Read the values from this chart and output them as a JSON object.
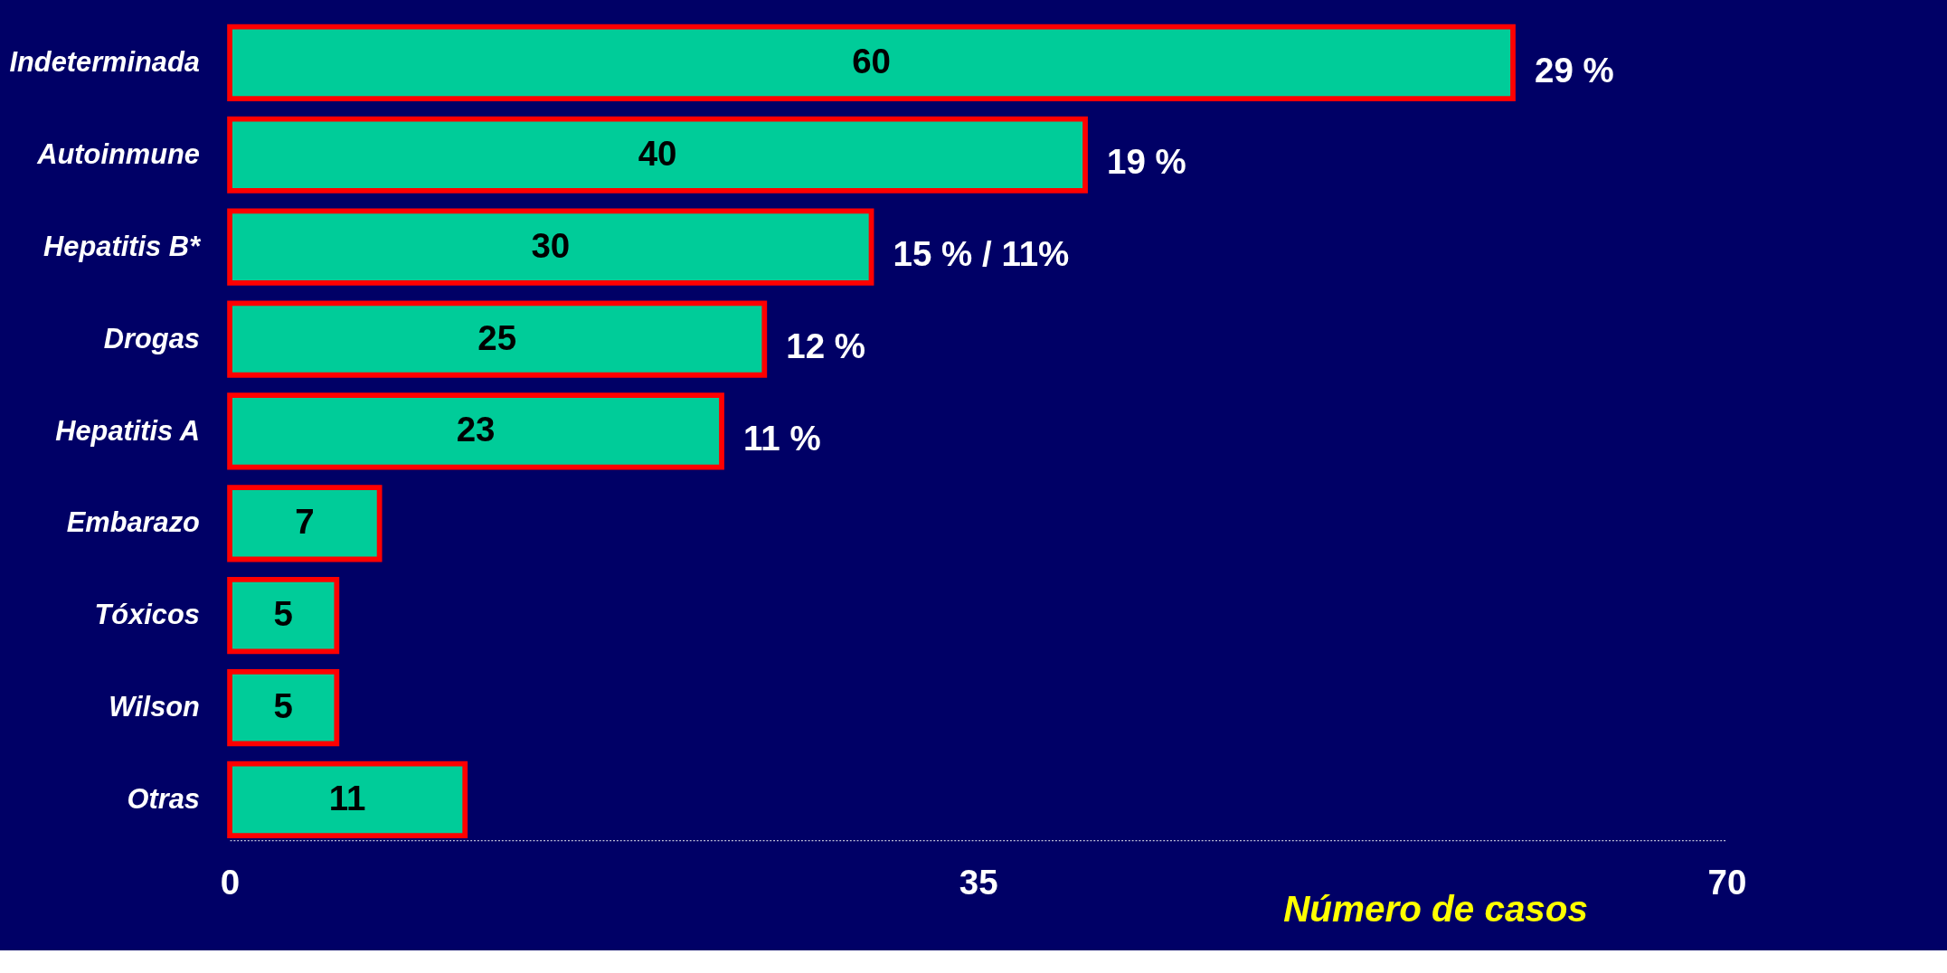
{
  "chart_data": {
    "type": "bar",
    "orientation": "horizontal",
    "categories": [
      "Indeterminada",
      "Autoinmune",
      "Hepatitis B*",
      "Drogas",
      "Hepatitis A",
      "Embarazo",
      "Tóxicos",
      "Wilson",
      "Otras"
    ],
    "values": [
      60,
      40,
      30,
      25,
      23,
      7,
      5,
      5,
      11
    ],
    "color": "#00cc99",
    "xlim": [
      0,
      70
    ],
    "xticks": [
      0,
      35,
      70
    ],
    "xlabel": "Número de casos",
    "data_labels": true,
    "grid": false,
    "annotations": [
      {
        "text": "29 %",
        "x": 60,
        "y": "Indeterminada"
      },
      {
        "text": "19 %",
        "x": 40,
        "y": "Autoinmune"
      },
      {
        "text": "15 % / 11%",
        "x": 30,
        "y": "Hepatitis B*"
      },
      {
        "text": "12 %",
        "x": 25,
        "y": "Drogas"
      },
      {
        "text": "11 %",
        "x": 23,
        "y": "Hepatitis A"
      }
    ]
  }
}
